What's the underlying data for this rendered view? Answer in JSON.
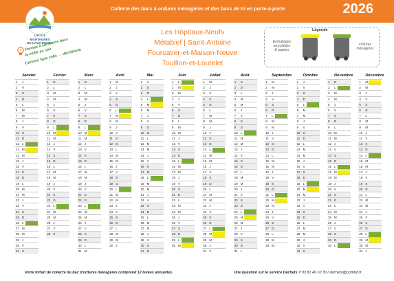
{
  "header": {
    "title": "Collecte des bacs à ordures ménagères et des bacs de tri en porte-à-porte",
    "year": "2026",
    "logo_text": [
      "LACS &",
      "MONTAGNES",
      "DU HAUT-DOUBS"
    ]
  },
  "communes": [
    "Les Hôpitaux-Neufs",
    "Métabief | Saint-Antoine",
    "Fourcatier-et-Maison-Neuve",
    "Touillon-et-Loutelet"
  ],
  "tips": [
    "Pensez à sortir vos bacs",
    "la veille au soir",
    "Cartons type colis → déchèterie"
  ],
  "legend": {
    "title": "Légende",
    "recyclable_label": [
      "Emballages",
      "recyclables",
      "& papiers"
    ],
    "household_label": [
      "Ordures",
      "ménagères"
    ],
    "colors": {
      "recyclable": "#f5ea00",
      "household": "#7aae34"
    }
  },
  "months": [
    "Janvier",
    "Février",
    "Mars",
    "Avril",
    "Mai",
    "Juin",
    "Juillet",
    "Août",
    "Septembre",
    "Octobre",
    "Novembre",
    "Décembre"
  ],
  "first_weekday_index": [
    3,
    6,
    6,
    2,
    4,
    0,
    2,
    5,
    1,
    3,
    6,
    1
  ],
  "weekday_letters": [
    "L",
    "M",
    "M",
    "J",
    "V",
    "S",
    "D"
  ],
  "collections": {
    "green": [
      [
        12,
        26
      ],
      [
        9,
        23
      ],
      [
        9,
        23
      ],
      [
        6,
        20
      ],
      [
        4,
        18
      ],
      [
        1,
        15,
        29
      ],
      [
        13,
        27
      ],
      [
        10,
        24
      ],
      [
        7,
        21
      ],
      [
        5,
        19
      ],
      [
        2,
        16,
        30
      ],
      [
        14,
        28
      ]
    ],
    "yellow": [
      [
        13
      ],
      [
        10
      ],
      [
        10
      ],
      [
        7
      ],
      [
        5
      ],
      [
        2,
        30
      ],
      [
        28
      ],
      [
        25
      ],
      [
        22
      ],
      [
        20
      ],
      [
        17
      ],
      [
        1,
        29
      ]
    ]
  },
  "footer": {
    "left": "Votre forfait de collecte du bac d'ordures ménagères comprend 12 levées annuelles.",
    "right_prefix": "Une question sur le service Déchets ?",
    "right_contact": "03 81 49 10 30 / dechets@cclmhd.fr"
  }
}
